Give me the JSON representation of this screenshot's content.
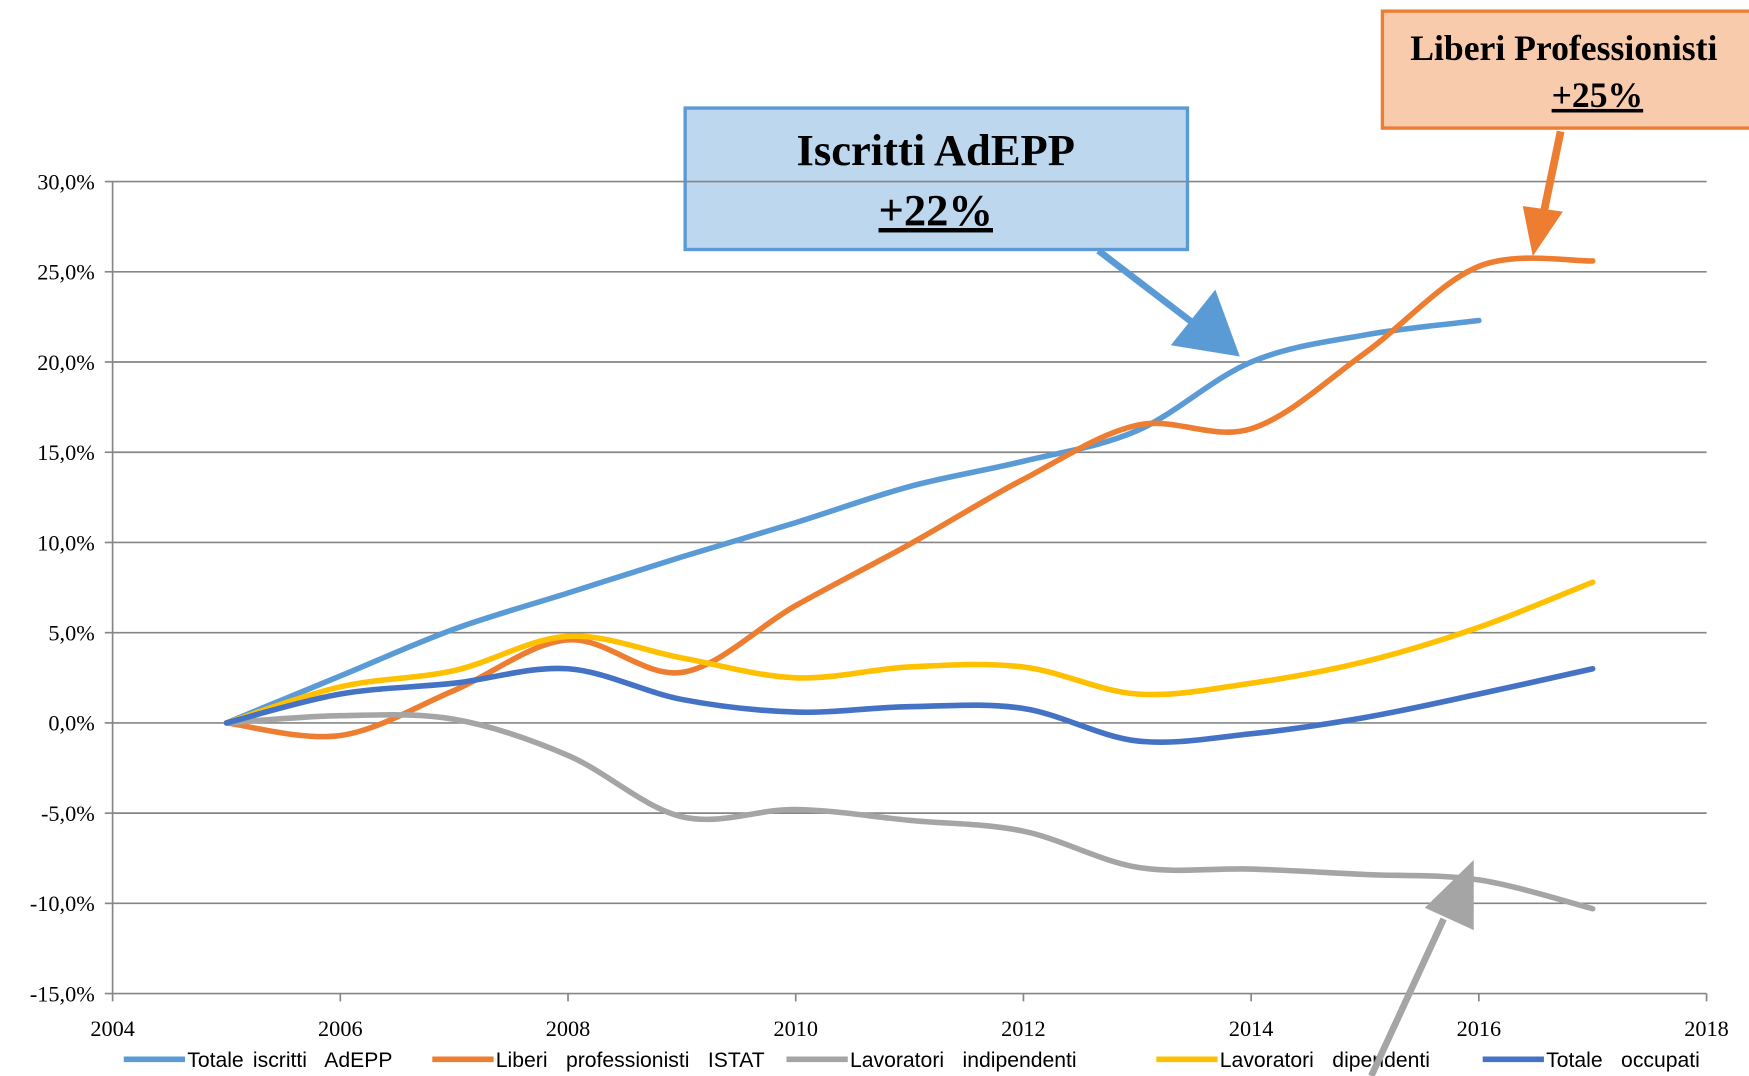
{
  "chart_data": {
    "type": "line",
    "x": [
      2005,
      2006,
      2007,
      2008,
      2009,
      2010,
      2011,
      2012,
      2013,
      2014,
      2015,
      2016,
      2017
    ],
    "series": [
      {
        "name": "Totale iscritti  AdEPP",
        "color": "#5b9bd5",
        "values": [
          0,
          2.6,
          5.2,
          7.2,
          9.2,
          11.1,
          13.1,
          14.5,
          16.2,
          20.0,
          21.5,
          22.3,
          null
        ]
      },
      {
        "name": "Liberi  professionisti  ISTAT",
        "color": "#ed7d31",
        "values": [
          0,
          -0.7,
          1.8,
          4.6,
          2.8,
          6.5,
          9.9,
          13.5,
          16.5,
          16.3,
          20.5,
          25.3,
          25.6
        ]
      },
      {
        "name": "Lavoratori  indipendenti",
        "color": "#a5a5a5",
        "values": [
          0,
          0.4,
          0.2,
          -1.8,
          -5.2,
          -4.8,
          -5.4,
          -6.0,
          -8.0,
          -8.1,
          -8.4,
          -8.7,
          -10.3
        ]
      },
      {
        "name": "Lavoratori  dipendenti",
        "color": "#ffc000",
        "values": [
          0,
          2.0,
          2.9,
          4.8,
          3.6,
          2.5,
          3.1,
          3.1,
          1.6,
          2.2,
          3.4,
          5.3,
          7.8
        ]
      },
      {
        "name": "Totale  occupati",
        "color": "#4472c4",
        "values": [
          0,
          1.6,
          2.2,
          3.0,
          1.3,
          0.6,
          0.9,
          0.8,
          -1.0,
          -0.6,
          0.3,
          1.6,
          3.0
        ]
      }
    ],
    "xlim": [
      2004,
      2018
    ],
    "xticks": [
      2004,
      2006,
      2008,
      2010,
      2012,
      2014,
      2016,
      2018
    ],
    "ylim": [
      -15,
      30
    ],
    "yticks": [
      {
        "value": -15,
        "label": "-15,0%"
      },
      {
        "value": -10,
        "label": "-10,0%"
      },
      {
        "value": -5,
        "label": "-5,0%"
      },
      {
        "value": 0,
        "label": "0,0%"
      },
      {
        "value": 5,
        "label": "5,0%"
      },
      {
        "value": 10,
        "label": "10,0%"
      },
      {
        "value": 15,
        "label": "15,0%"
      },
      {
        "value": 20,
        "label": "20,0%"
      },
      {
        "value": 25,
        "label": "25,0%"
      },
      {
        "value": 30,
        "label": "30,0%"
      }
    ],
    "grid": true,
    "legend": "bottom",
    "annotations": [
      {
        "title": "Iscritti AdEPP",
        "value": "+22%"
      },
      {
        "title": "Liberi Professionisti",
        "value": "+25%"
      }
    ]
  }
}
